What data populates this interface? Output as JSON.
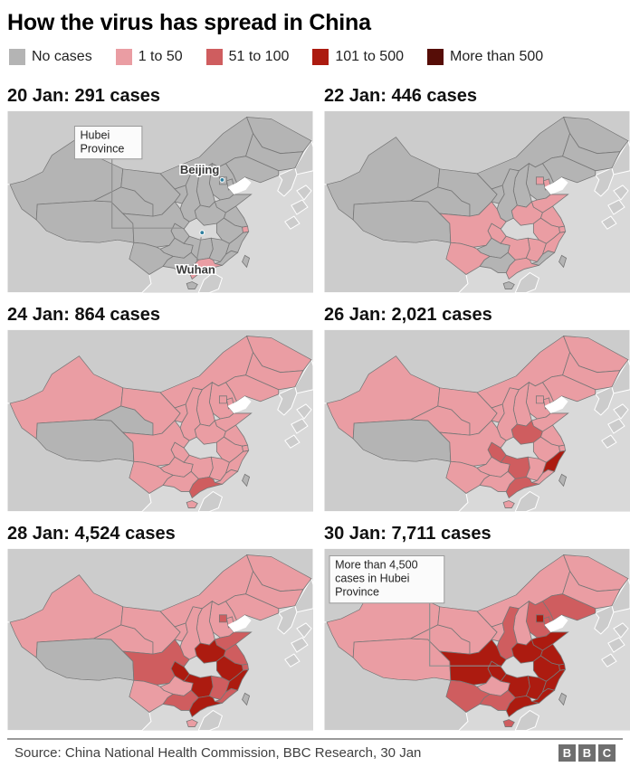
{
  "title": "How the virus has spread in China",
  "legend": {
    "items": [
      {
        "label": "No cases",
        "color": "#b4b4b4",
        "key": "none"
      },
      {
        "label": "1 to 50",
        "color": "#ea9da3",
        "key": "c1"
      },
      {
        "label": "51 to 100",
        "color": "#cf5d5f",
        "key": "c2"
      },
      {
        "label": "101 to 500",
        "color": "#ac1b10",
        "key": "c3"
      },
      {
        "label": "More than 500",
        "color": "#560d07",
        "key": "c4"
      }
    ]
  },
  "colors": {
    "ocean": "#d9d9d9",
    "foreign_land": "#cccccc",
    "province_border": "#777777",
    "hubei_outline": "#ffffff",
    "city_dot": "#2e7f9e",
    "annotation_box_fill": "#fbfbfb",
    "annotation_box_border": "#9a9a9a",
    "leader_line": "#8f8f8f",
    "sea_white": "#ffffff"
  },
  "maps": [
    {
      "title": "20 Jan: 291 cases",
      "date": "20 Jan",
      "cases": 291,
      "default_category": "none",
      "provinces": {
        "Hubei": "c3",
        "Guangdong": "c1",
        "Shanghai": "c1"
      },
      "annotation_box": {
        "lines": [
          "Hubei",
          "Province"
        ]
      },
      "city_labels": [
        "Beijing",
        "Wuhan"
      ]
    },
    {
      "title": "22 Jan: 446 cases",
      "date": "22 Jan",
      "cases": 446,
      "default_category": "none",
      "provinces": {
        "Hubei": "c3",
        "Beijing": "c1",
        "Tianjin": "c1",
        "Henan": "c1",
        "Shandong": "c1",
        "Jiangsu": "c1",
        "Shanghai": "c1",
        "Anhui": "c1",
        "Zhejiang": "c1",
        "Jiangxi": "c1",
        "Hunan": "c1",
        "Chongqing": "c1",
        "Sichuan": "c1",
        "Yunnan": "c1",
        "Guangdong": "c1"
      }
    },
    {
      "title": "24 Jan: 864 cases",
      "date": "24 Jan",
      "cases": 864,
      "default_category": "c1",
      "provinces": {
        "Hubei": "c4",
        "Guangdong": "c2",
        "Tibet": "none",
        "Qinghai": "none",
        "Taiwan": "none"
      }
    },
    {
      "title": "26 Jan: 2,021 cases",
      "date": "26 Jan",
      "cases": 2021,
      "default_category": "c1",
      "provinces": {
        "Hubei": "c4",
        "Zhejiang": "c3",
        "Henan": "c2",
        "Hunan": "c2",
        "Chongqing": "c2",
        "Guangdong": "c2",
        "Tibet": "none",
        "Taiwan": "none"
      }
    },
    {
      "title": "28 Jan: 4,524 cases",
      "date": "28 Jan",
      "cases": 4524,
      "default_category": "c1",
      "provinces": {
        "Hubei": "c4",
        "Henan": "c3",
        "Anhui": "c3",
        "Chongqing": "c3",
        "Hunan": "c3",
        "Zhejiang": "c3",
        "Guangdong": "c3",
        "Sichuan": "c2",
        "Shandong": "c2",
        "Jiangsu": "c2",
        "Shanghai": "c2",
        "Jiangxi": "c2",
        "Fujian": "c2",
        "Guangxi": "c2",
        "Beijing": "c2",
        "Tibet": "none",
        "Taiwan": "none"
      }
    },
    {
      "title": "30 Jan: 7,711 cases",
      "date": "30 Jan",
      "cases": 7711,
      "default_category": "c1",
      "provinces": {
        "Hubei": "c4",
        "Sichuan": "c3",
        "Chongqing": "c3",
        "Henan": "c3",
        "Hunan": "c3",
        "Anhui": "c3",
        "Jiangsu": "c3",
        "Shandong": "c3",
        "Zhejiang": "c3",
        "Jiangxi": "c3",
        "Fujian": "c3",
        "Guangdong": "c3",
        "Beijing": "c3",
        "Shanghai": "c3",
        "Shaanxi": "c2",
        "Hebei": "c2",
        "Tianjin": "c2",
        "Liaoning": "c2",
        "Yunnan": "c2",
        "Guangxi": "c2",
        "Hainan": "c2",
        "Taiwan": "none"
      },
      "annotation_box": {
        "lines": [
          "More than 4,500",
          "cases in Hubei",
          "Province"
        ]
      }
    }
  ],
  "footer": {
    "source": "Source: China National Health Commission, BBC Research, 30 Jan",
    "logo_letters": [
      "B",
      "B",
      "C"
    ]
  }
}
